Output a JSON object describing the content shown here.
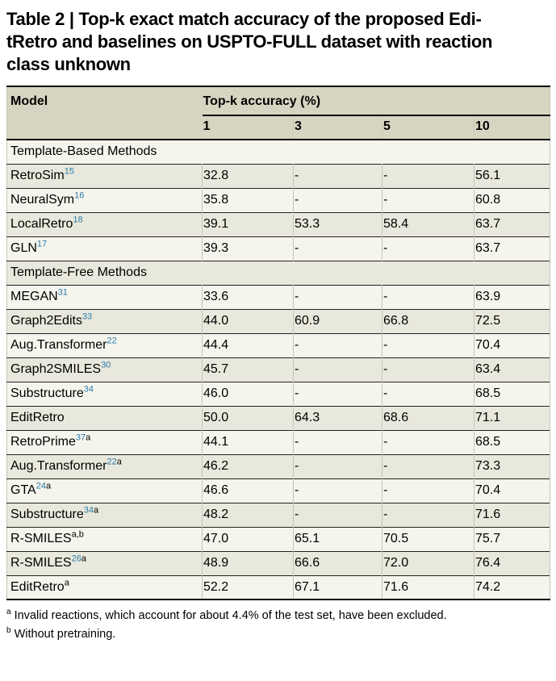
{
  "title_lines": [
    "Table 2 | Top-k exact match accuracy of the proposed Edi-",
    "tRetro and baselines on USPTO-FULL dataset with reaction",
    "class unknown"
  ],
  "table": {
    "header": {
      "model_label": "Model",
      "group_label": "Top-k accuracy (%)",
      "k_values": [
        "1",
        "3",
        "5",
        "10"
      ]
    },
    "rows": [
      {
        "type": "section",
        "label": "Template-Based Methods"
      },
      {
        "type": "data",
        "model": "RetroSim",
        "ref": "15",
        "note": "",
        "values": [
          "32.8",
          "-",
          "-",
          "56.1"
        ]
      },
      {
        "type": "data",
        "model": "NeuralSym",
        "ref": "16",
        "note": "",
        "values": [
          "35.8",
          "-",
          "-",
          "60.8"
        ]
      },
      {
        "type": "data",
        "model": "LocalRetro",
        "ref": "18",
        "note": "",
        "values": [
          "39.1",
          "53.3",
          "58.4",
          "63.7"
        ]
      },
      {
        "type": "data",
        "model": "GLN",
        "ref": "17",
        "note": "",
        "values": [
          "39.3",
          "-",
          "-",
          "63.7"
        ]
      },
      {
        "type": "section",
        "label": "Template-Free Methods"
      },
      {
        "type": "data",
        "model": "MEGAN",
        "ref": "31",
        "note": "",
        "values": [
          "33.6",
          "-",
          "-",
          "63.9"
        ]
      },
      {
        "type": "data",
        "model": "Graph2Edits",
        "ref": "33",
        "note": "",
        "values": [
          "44.0",
          "60.9",
          "66.8",
          "72.5"
        ]
      },
      {
        "type": "data",
        "model": "Aug.Transformer",
        "ref": "22",
        "note": "",
        "values": [
          "44.4",
          "-",
          "-",
          "70.4"
        ]
      },
      {
        "type": "data",
        "model": "Graph2SMILES",
        "ref": "30",
        "note": "",
        "values": [
          "45.7",
          "-",
          "-",
          "63.4"
        ]
      },
      {
        "type": "data",
        "model": "Substructure",
        "ref": "34",
        "note": "",
        "values": [
          "46.0",
          "-",
          "-",
          "68.5"
        ]
      },
      {
        "type": "data",
        "model": "EditRetro",
        "ref": "",
        "note": "",
        "values": [
          "50.0",
          "64.3",
          "68.6",
          "71.1"
        ]
      },
      {
        "type": "data",
        "model": "RetroPrime",
        "ref": "37",
        "note": "a",
        "values": [
          "44.1",
          "-",
          "-",
          "68.5"
        ]
      },
      {
        "type": "data",
        "model": "Aug.Transformer",
        "ref": "22",
        "note": "a",
        "values": [
          "46.2",
          "-",
          "-",
          "73.3"
        ]
      },
      {
        "type": "data",
        "model": "GTA",
        "ref": "24",
        "note": "a",
        "values": [
          "46.6",
          "-",
          "-",
          "70.4"
        ]
      },
      {
        "type": "data",
        "model": "Substructure",
        "ref": "34",
        "note": "a",
        "values": [
          "48.2",
          "-",
          "-",
          "71.6"
        ]
      },
      {
        "type": "data",
        "model": "R-SMILES",
        "ref": "",
        "note": "a,b",
        "values": [
          "47.0",
          "65.1",
          "70.5",
          "75.7"
        ]
      },
      {
        "type": "data",
        "model": "R-SMILES",
        "ref": "26",
        "note": "a",
        "values": [
          "48.9",
          "66.6",
          "72.0",
          "76.4"
        ]
      },
      {
        "type": "data",
        "model": "EditRetro",
        "ref": "",
        "note": "a",
        "values": [
          "52.2",
          "67.1",
          "71.6",
          "74.2"
        ]
      }
    ]
  },
  "footnotes": [
    {
      "marker": "a",
      "text": "Invalid reactions, which account for about 4.4% of the test set, have been excluded."
    },
    {
      "marker": "b",
      "text": "Without pretraining."
    }
  ],
  "colors": {
    "header_bg": "#d7d5c1",
    "row_beige": "#e9e8dc",
    "row_light": "#f5f4ed",
    "ref_blue": "#2b7cab"
  }
}
